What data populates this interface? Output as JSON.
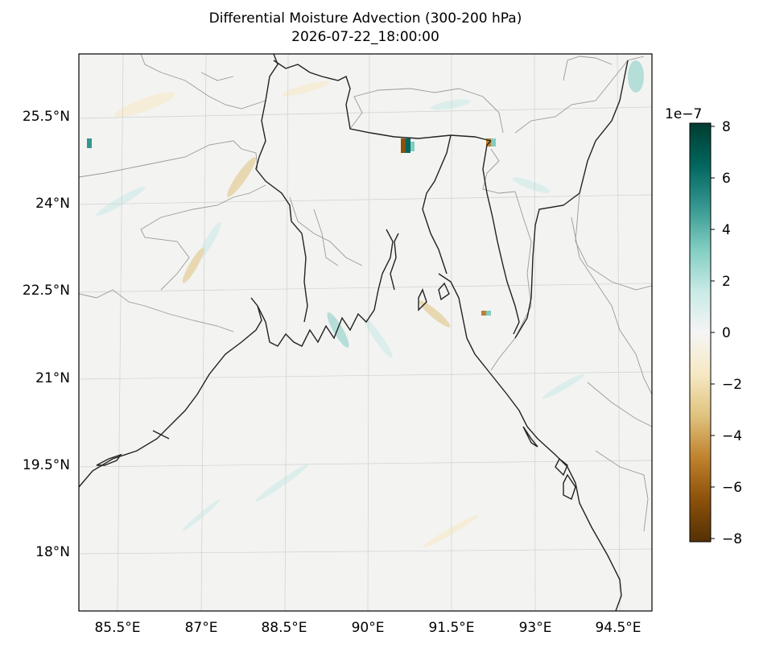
{
  "title": {
    "line1": "Differential Moisture Advection (300-200 hPa)",
    "line2": "2026-07-22_18:00:00"
  },
  "map": {
    "lat_labels": [
      "25.5°N",
      "24°N",
      "22.5°N",
      "21°N",
      "19.5°N",
      "18°N"
    ],
    "lon_labels": [
      "85.5°E",
      "87°E",
      "88.5°E",
      "90°E",
      "91.5°E",
      "93°E",
      "94.5°E"
    ],
    "extent": {
      "lon": [
        84.9,
        94.9
      ],
      "lat": [
        16.9,
        26.5
      ]
    },
    "gridlines": true,
    "coastline_color": "#222222",
    "border_color": "#999999",
    "background_color": "#f3f3f2"
  },
  "colorbar": {
    "multiplier": "1e−7",
    "ticks": [
      "8",
      "6",
      "4",
      "2",
      "0",
      "−2",
      "−4",
      "−6",
      "−8"
    ],
    "range": [
      -8,
      8
    ],
    "colormap": "BrBG",
    "colors": [
      "#543005",
      "#8c510a",
      "#bf812d",
      "#dfc27d",
      "#f6e8c3",
      "#f5f5f5",
      "#c7eae5",
      "#80cdc1",
      "#35978f",
      "#01665e",
      "#003c30"
    ]
  }
}
